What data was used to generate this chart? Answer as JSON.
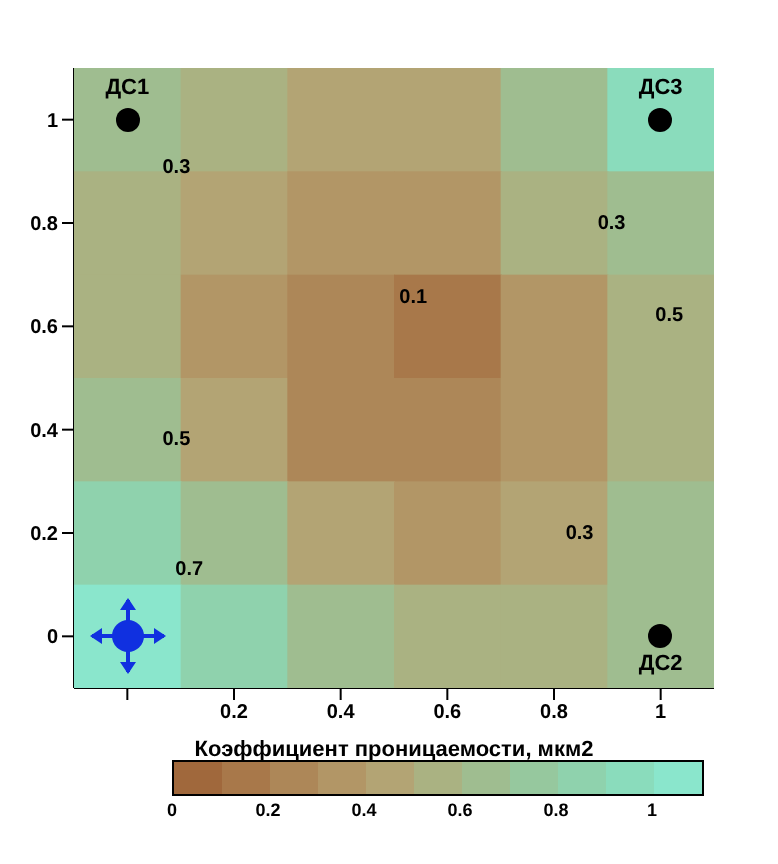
{
  "chart_data": {
    "type": "heatmap",
    "xlabel": "Коэффициент проницаемости, мкм2",
    "categories": [
      null,
      "0.2",
      "0.4",
      "0.6",
      "0.8",
      "1"
    ],
    "y_categories": [
      "1",
      "0.8",
      "0.6",
      "0.4",
      "0.2",
      "0"
    ],
    "clim": [
      0,
      1.1
    ],
    "cticks": [
      0,
      0.2,
      0.4,
      0.6,
      0.8,
      1
    ],
    "colors": [
      "#a0683c",
      "#a8784a",
      "#ad8758",
      "#b29666",
      "#b3a474",
      "#aab282",
      "#9fbd90",
      "#96c89e",
      "#8fd2ad",
      "#8adcbc",
      "#8ae6cc"
    ],
    "cells": [
      [
        0.6,
        0.5,
        0.4,
        0.4,
        0.6,
        0.9
      ],
      [
        0.5,
        0.4,
        0.3,
        0.3,
        0.5,
        0.7
      ],
      [
        0.5,
        0.3,
        0.2,
        0.1,
        0.3,
        0.5
      ],
      [
        0.6,
        0.4,
        0.2,
        0.2,
        0.3,
        0.5
      ],
      [
        0.8,
        0.6,
        0.4,
        0.3,
        0.4,
        0.6
      ],
      [
        1.0,
        0.8,
        0.6,
        0.5,
        0.5,
        0.7
      ]
    ],
    "annotations": [
      "ДС1",
      "ДС2",
      "ДС3",
      "0.1",
      "0.3",
      "0.3",
      "0.3",
      "0.5",
      "0.5",
      "0.7"
    ]
  }
}
